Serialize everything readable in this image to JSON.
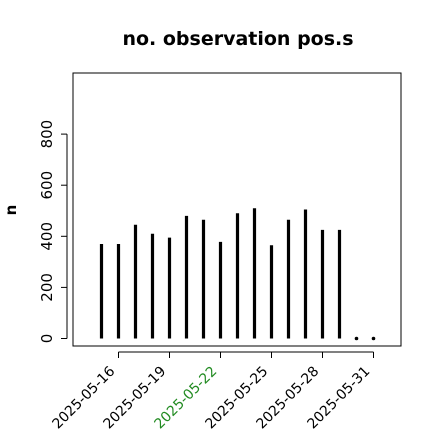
{
  "chart_data": {
    "type": "bar",
    "title": "no. observation pos.s",
    "xlabel": "",
    "ylabel": "n",
    "ylim": [
      0,
      1000
    ],
    "y_ticks": [
      0,
      200,
      400,
      600,
      800
    ],
    "y_tick_labels": [
      "0",
      "200",
      "400",
      "600",
      "800"
    ],
    "x_tick_labels": [
      {
        "label": "2025-05-16",
        "color": "#000000"
      },
      {
        "label": "2025-05-19",
        "color": "#000000"
      },
      {
        "label": "2025-05-22",
        "color": "#228B22"
      },
      {
        "label": "2025-05-25",
        "color": "#000000"
      },
      {
        "label": "2025-05-28",
        "color": "#000000"
      },
      {
        "label": "2025-05-31",
        "color": "#000000"
      }
    ],
    "categories": [
      "2025-05-15",
      "2025-05-16",
      "2025-05-17",
      "2025-05-18",
      "2025-05-19",
      "2025-05-20",
      "2025-05-21",
      "2025-05-22",
      "2025-05-23",
      "2025-05-24",
      "2025-05-25",
      "2025-05-26",
      "2025-05-27",
      "2025-05-28",
      "2025-05-29",
      "2025-05-30",
      "2025-05-31"
    ],
    "values": [
      370,
      370,
      445,
      410,
      395,
      480,
      465,
      378,
      490,
      510,
      365,
      465,
      505,
      425,
      425,
      0,
      0
    ],
    "bar_color": "#000000",
    "grid": false
  }
}
